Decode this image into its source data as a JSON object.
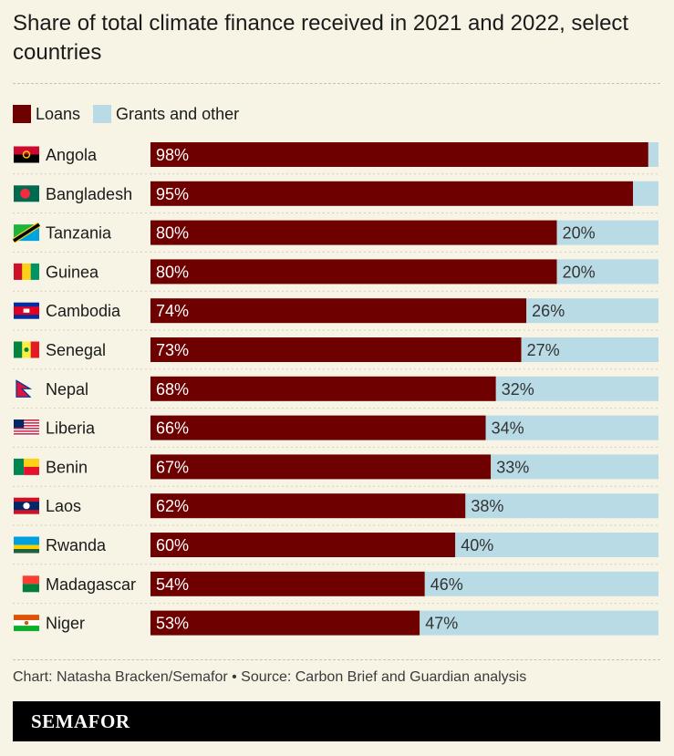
{
  "header": {
    "title": "Share of total climate finance received in 2021 and 2022, select countries"
  },
  "legend": {
    "loans_label": "Loans",
    "grants_label": "Grants and other"
  },
  "colors": {
    "loans": "#6e0000",
    "grants": "#b9dbe5",
    "background": "#f7f4e6"
  },
  "chart_data": {
    "type": "bar",
    "orientation": "horizontal",
    "stacked": true,
    "title": "Share of total climate finance received in 2021 and 2022, select countries",
    "categories": [
      "Angola",
      "Bangladesh",
      "Tanzania",
      "Guinea",
      "Cambodia",
      "Senegal",
      "Nepal",
      "Liberia",
      "Benin",
      "Laos",
      "Rwanda",
      "Madagascar",
      "Niger"
    ],
    "series": [
      {
        "name": "Loans",
        "values": [
          98,
          95,
          80,
          80,
          74,
          73,
          68,
          66,
          67,
          62,
          60,
          54,
          53
        ],
        "labels": [
          "98%",
          "95%",
          "80%",
          "80%",
          "74%",
          "73%",
          "68%",
          "66%",
          "67%",
          "62%",
          "60%",
          "54%",
          "53%"
        ]
      },
      {
        "name": "Grants and other",
        "values": [
          2,
          5,
          20,
          20,
          26,
          27,
          32,
          34,
          33,
          38,
          40,
          46,
          47
        ],
        "labels": [
          "",
          "",
          "20%",
          "20%",
          "26%",
          "27%",
          "32%",
          "34%",
          "33%",
          "38%",
          "40%",
          "46%",
          "47%"
        ]
      }
    ],
    "unit": "%",
    "xlim": [
      0,
      100
    ]
  },
  "footer": {
    "source": "Chart: Natasha Bracken/Semafor • Source: Carbon Brief and Guardian analysis",
    "brand": "SEMAFOR"
  }
}
